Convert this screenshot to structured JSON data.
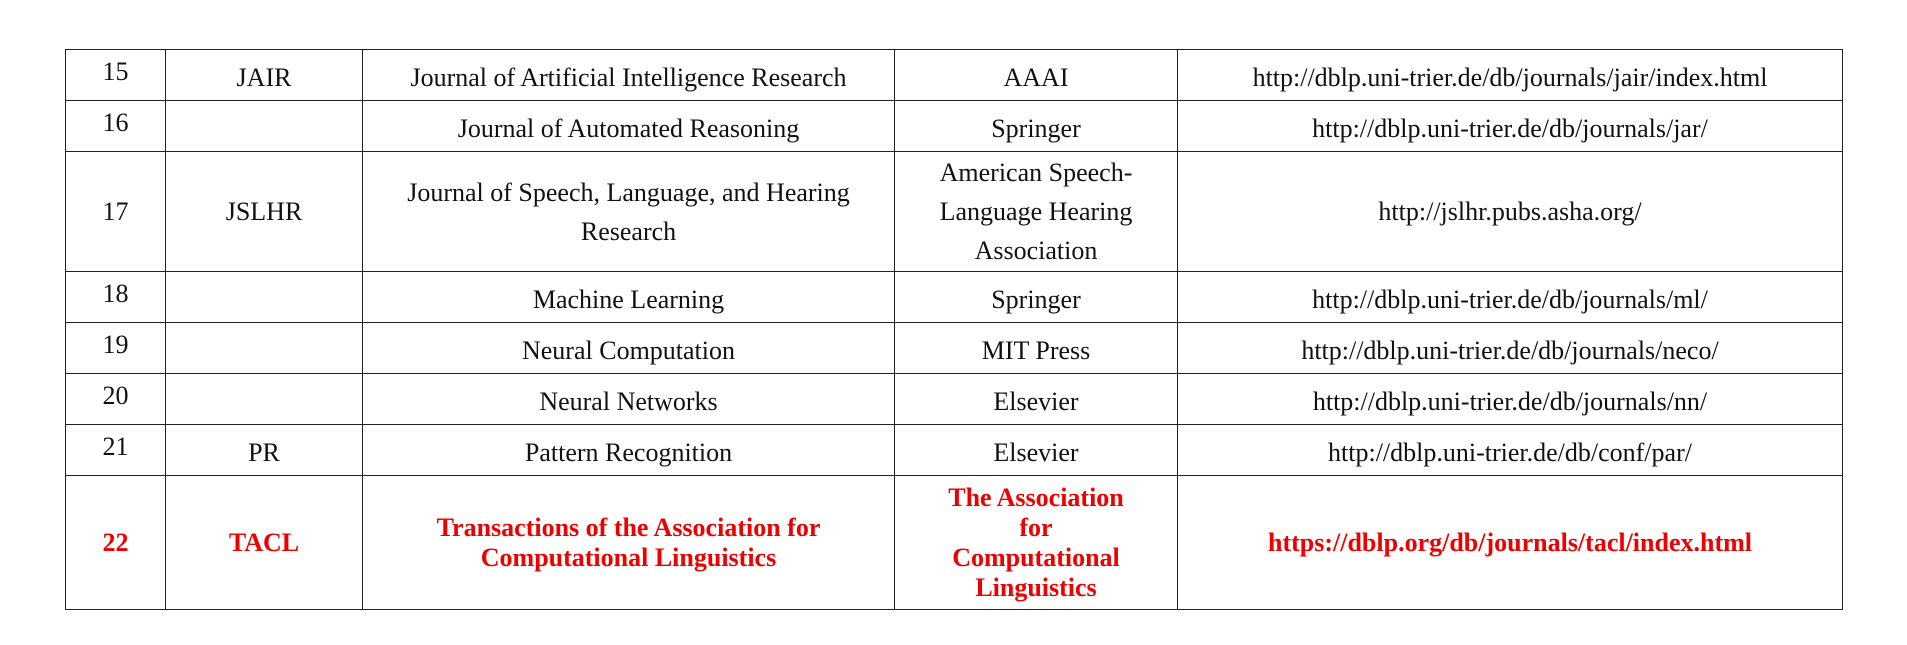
{
  "rows": [
    {
      "no": "15",
      "abbr": "JAIR",
      "name": "Journal of Artificial Intelligence Research",
      "publisher": "AAAI",
      "url": "http://dblp.uni-trier.de/db/journals/jair/index.html"
    },
    {
      "no": "16",
      "abbr": "",
      "name": "Journal of Automated Reasoning",
      "publisher": "Springer",
      "url": "http://dblp.uni-trier.de/db/journals/jar/"
    },
    {
      "no": "17",
      "abbr": "JSLHR",
      "name_line1": "Journal of Speech, Language, and Hearing",
      "name_line2": "Research",
      "publisher_line1": "American Speech-",
      "publisher_line2": "Language Hearing",
      "publisher_line3": "Association",
      "url": "http://jslhr.pubs.asha.org/"
    },
    {
      "no": "18",
      "abbr": "",
      "name": "Machine Learning",
      "publisher": "Springer",
      "url": "http://dblp.uni-trier.de/db/journals/ml/"
    },
    {
      "no": "19",
      "abbr": "",
      "name": "Neural Computation",
      "publisher": "MIT Press",
      "url": "http://dblp.uni-trier.de/db/journals/neco/"
    },
    {
      "no": "20",
      "abbr": "",
      "name": "Neural Networks",
      "publisher": "Elsevier",
      "url": "http://dblp.uni-trier.de/db/journals/nn/"
    },
    {
      "no": "21",
      "abbr": "PR",
      "name": "Pattern Recognition",
      "publisher": "Elsevier",
      "url": "http://dblp.uni-trier.de/db/conf/par/"
    },
    {
      "no": "22",
      "abbr": "TACL",
      "name_line1": "Transactions of the Association for",
      "name_line2": "Computational Linguistics",
      "publisher_line1": "The Association",
      "publisher_line2": "for",
      "publisher_line3": "Computational",
      "publisher_line4": "Linguistics",
      "url": "https://dblp.org/db/journals/tacl/index.html"
    }
  ],
  "highlight_color": "#ee0000"
}
